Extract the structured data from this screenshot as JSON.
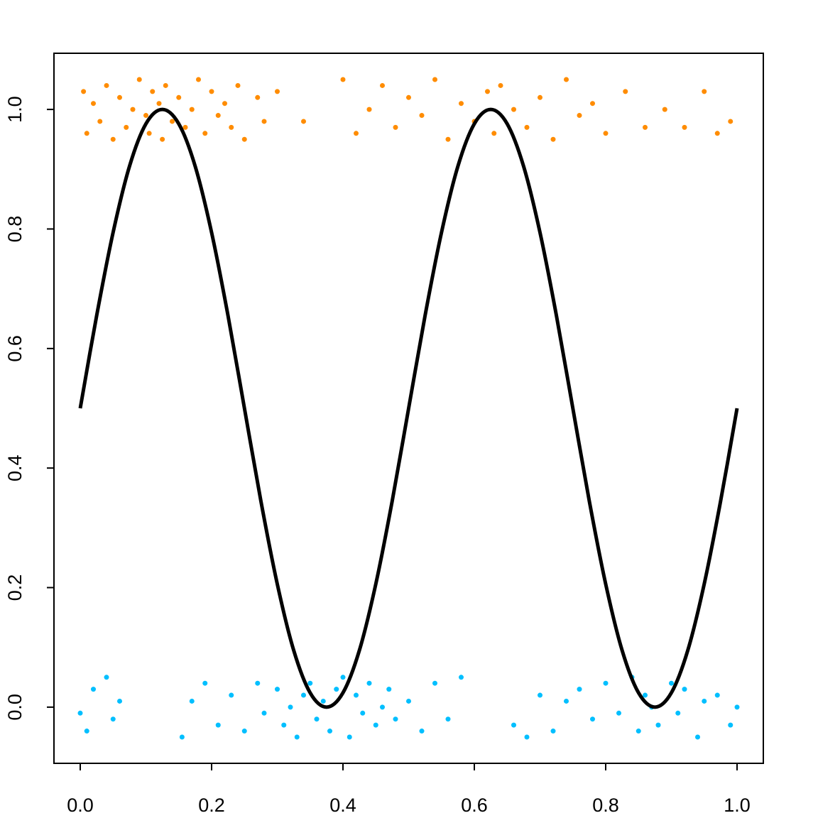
{
  "chart_data": {
    "type": "scatter",
    "xlim": [
      -0.04,
      1.04
    ],
    "ylim": [
      -0.094,
      1.094
    ],
    "xticks": [
      {
        "value": 0,
        "label": "0.0"
      },
      0.2,
      0.4,
      0.6,
      0.8,
      {
        "value": 1,
        "label": "1.0"
      }
    ],
    "yticks": [
      {
        "value": 0,
        "label": "0.0"
      },
      0.2,
      0.4,
      0.6,
      0.8,
      {
        "value": 1,
        "label": "1.0"
      }
    ],
    "series": [
      {
        "color": "#FF8C00",
        "x": [
          0.005,
          0.01,
          0.02,
          0.03,
          0.04,
          0.05,
          0.06,
          0.07,
          0.08,
          0.09,
          0.1,
          0.105,
          0.11,
          0.12,
          0.125,
          0.13,
          0.14,
          0.15,
          0.16,
          0.17,
          0.18,
          0.19,
          0.2,
          0.21,
          0.22,
          0.23,
          0.24,
          0.25,
          0.27,
          0.28,
          0.3,
          0.34,
          0.4,
          0.42,
          0.44,
          0.46,
          0.48,
          0.5,
          0.52,
          0.54,
          0.56,
          0.58,
          0.6,
          0.62,
          0.63,
          0.64,
          0.66,
          0.68,
          0.7,
          0.72,
          0.74,
          0.76,
          0.78,
          0.8,
          0.83,
          0.86,
          0.89,
          0.92,
          0.95,
          0.97,
          0.99
        ],
        "values": [
          1.03,
          0.96,
          1.01,
          0.98,
          1.04,
          0.95,
          1.02,
          0.97,
          1.0,
          1.05,
          0.99,
          0.96,
          1.03,
          1.01,
          0.95,
          1.04,
          0.98,
          1.02,
          0.97,
          1.0,
          1.05,
          0.96,
          1.03,
          0.99,
          1.01,
          0.97,
          1.04,
          0.95,
          1.02,
          0.98,
          1.03,
          0.98,
          1.05,
          0.96,
          1.0,
          1.04,
          0.97,
          1.02,
          0.99,
          1.05,
          0.95,
          1.01,
          0.98,
          1.03,
          0.96,
          1.04,
          1.0,
          0.97,
          1.02,
          0.95,
          1.05,
          0.99,
          1.01,
          0.96,
          1.03,
          0.97,
          1.0,
          0.97,
          1.03,
          0.96,
          0.98
        ]
      },
      {
        "color": "#00BFFF",
        "x": [
          0.0,
          0.01,
          0.02,
          0.04,
          0.05,
          0.06,
          0.155,
          0.17,
          0.19,
          0.21,
          0.23,
          0.25,
          0.27,
          0.28,
          0.3,
          0.31,
          0.32,
          0.33,
          0.34,
          0.35,
          0.36,
          0.37,
          0.38,
          0.39,
          0.4,
          0.41,
          0.42,
          0.43,
          0.44,
          0.45,
          0.46,
          0.47,
          0.48,
          0.5,
          0.52,
          0.54,
          0.56,
          0.58,
          0.66,
          0.68,
          0.7,
          0.72,
          0.74,
          0.76,
          0.78,
          0.8,
          0.82,
          0.84,
          0.85,
          0.86,
          0.87,
          0.88,
          0.9,
          0.91,
          0.92,
          0.94,
          0.95,
          0.97,
          0.99,
          1.0
        ],
        "values": [
          -0.01,
          -0.04,
          0.03,
          0.05,
          -0.02,
          0.01,
          -0.05,
          0.01,
          0.04,
          -0.03,
          0.02,
          -0.04,
          0.04,
          -0.01,
          0.03,
          -0.03,
          0.0,
          -0.05,
          0.02,
          0.04,
          -0.02,
          0.01,
          -0.04,
          0.03,
          0.05,
          -0.05,
          0.02,
          -0.01,
          0.04,
          -0.03,
          0.0,
          0.03,
          -0.02,
          0.01,
          -0.04,
          0.04,
          -0.02,
          0.05,
          -0.03,
          -0.05,
          0.02,
          -0.04,
          0.01,
          0.03,
          -0.02,
          0.04,
          -0.01,
          0.05,
          -0.04,
          0.02,
          0.0,
          -0.03,
          0.04,
          -0.01,
          0.03,
          -0.05,
          0.01,
          0.02,
          -0.03,
          0.0
        ]
      },
      {
        "color": "#000000",
        "line": true,
        "x": [
          0,
          0.025,
          0.05,
          0.075,
          0.1,
          0.125,
          0.15,
          0.175,
          0.2,
          0.225,
          0.25,
          0.275,
          0.3,
          0.325,
          0.35,
          0.375,
          0.4,
          0.425,
          0.45,
          0.475,
          0.5,
          0.525,
          0.55,
          0.575,
          0.6,
          0.625,
          0.65,
          0.675,
          0.7,
          0.725,
          0.75,
          0.775,
          0.8,
          0.825,
          0.85,
          0.875,
          0.9,
          0.925,
          0.95,
          0.975,
          1
        ],
        "values": [
          0.5,
          0.655,
          0.794,
          0.905,
          0.976,
          1,
          0.976,
          0.905,
          0.794,
          0.655,
          0.5,
          0.345,
          0.206,
          0.095,
          0.024,
          0,
          0.024,
          0.095,
          0.206,
          0.345,
          0.5,
          0.655,
          0.794,
          0.905,
          0.976,
          1,
          0.976,
          0.905,
          0.794,
          0.655,
          0.5,
          0.345,
          0.206,
          0.095,
          0.024,
          0,
          0.024,
          0.095,
          0.206,
          0.345,
          0.5
        ]
      }
    ]
  }
}
